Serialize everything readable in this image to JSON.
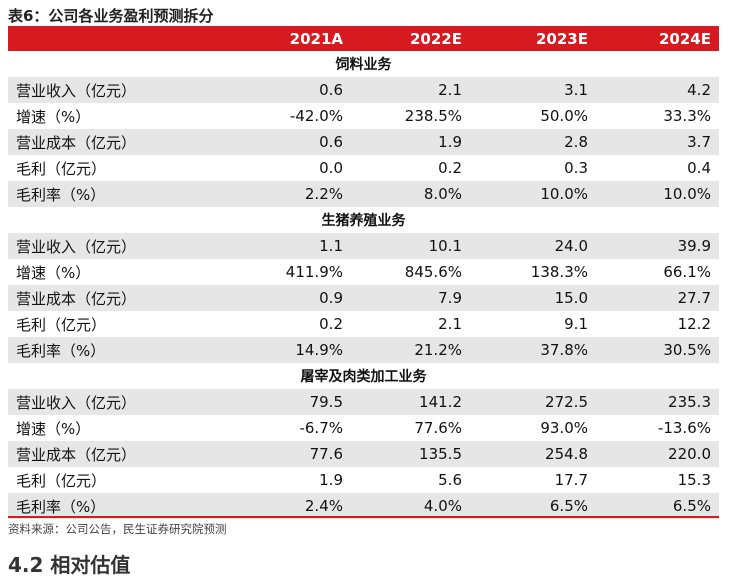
{
  "title": "表6：公司各业务盈利预测拆分",
  "header": {
    "col0": "",
    "col1": "2021A",
    "col2": "2022E",
    "col3": "2023E",
    "col4": "2024E"
  },
  "sections": [
    {
      "name": "饲料业务",
      "rows": [
        {
          "label": "营业收入（亿元）",
          "v": [
            "0.6",
            "2.1",
            "3.1",
            "4.2"
          ]
        },
        {
          "label": "增速（%）",
          "v": [
            "-42.0%",
            "238.5%",
            "50.0%",
            "33.3%"
          ]
        },
        {
          "label": "营业成本（亿元）",
          "v": [
            "0.6",
            "1.9",
            "2.8",
            "3.7"
          ]
        },
        {
          "label": "毛利（亿元）",
          "v": [
            "0.0",
            "0.2",
            "0.3",
            "0.4"
          ]
        },
        {
          "label": "毛利率（%）",
          "v": [
            "2.2%",
            "8.0%",
            "10.0%",
            "10.0%"
          ]
        }
      ]
    },
    {
      "name": "生猪养殖业务",
      "rows": [
        {
          "label": "营业收入（亿元）",
          "v": [
            "1.1",
            "10.1",
            "24.0",
            "39.9"
          ]
        },
        {
          "label": "增速（%）",
          "v": [
            "411.9%",
            "845.6%",
            "138.3%",
            "66.1%"
          ]
        },
        {
          "label": "营业成本（亿元）",
          "v": [
            "0.9",
            "7.9",
            "15.0",
            "27.7"
          ]
        },
        {
          "label": "毛利（亿元）",
          "v": [
            "0.2",
            "2.1",
            "9.1",
            "12.2"
          ]
        },
        {
          "label": "毛利率（%）",
          "v": [
            "14.9%",
            "21.2%",
            "37.8%",
            "30.5%"
          ]
        }
      ]
    },
    {
      "name": "屠宰及肉类加工业务",
      "rows": [
        {
          "label": "营业收入（亿元）",
          "v": [
            "79.5",
            "141.2",
            "272.5",
            "235.3"
          ]
        },
        {
          "label": "增速（%）",
          "v": [
            "-6.7%",
            "77.6%",
            "93.0%",
            "-13.6%"
          ]
        },
        {
          "label": "营业成本（亿元）",
          "v": [
            "77.6",
            "135.5",
            "254.8",
            "220.0"
          ]
        },
        {
          "label": "毛利（亿元）",
          "v": [
            "1.9",
            "5.6",
            "17.7",
            "15.3"
          ]
        },
        {
          "label": "毛利率（%）",
          "v": [
            "2.4%",
            "4.0%",
            "6.5%",
            "6.5%"
          ]
        }
      ]
    }
  ],
  "source": "资料来源：公司公告，民生证券研究院预测",
  "next_heading": "4.2 相对估值",
  "colors": {
    "header_bg": "#d71920",
    "shade": "#e6e6e6"
  }
}
